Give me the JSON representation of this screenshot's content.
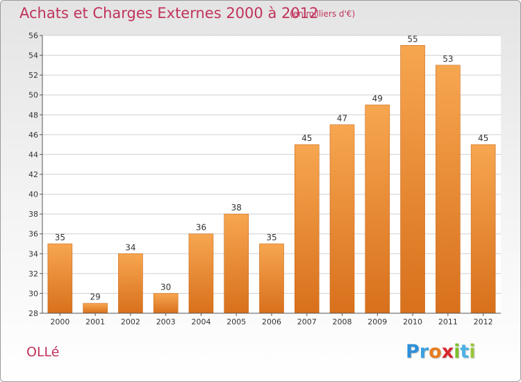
{
  "title": "Achats et Charges Externes 2000 à 2012",
  "subtitle": "(en milliers d'€)",
  "commune": "OLLé",
  "brand": {
    "letters": [
      {
        "ch": "P",
        "color": "#2f8fd8"
      },
      {
        "ch": "r",
        "color": "#3aa0e0"
      },
      {
        "ch": "o",
        "color": "#e87d1e"
      },
      {
        "ch": "x",
        "color": "#d8262e"
      },
      {
        "ch": "i",
        "color": "#7cbf2a"
      },
      {
        "ch": "t",
        "color": "#4bb2e6"
      },
      {
        "ch": "i",
        "color": "#9ac63a"
      }
    ]
  },
  "colors": {
    "bar_light": "#f7a650",
    "bar_dark": "#d8701c",
    "text": "#c0335a"
  },
  "chart_data": {
    "type": "bar",
    "title": "Achats et Charges Externes 2000 à 2012",
    "subtitle": "(en milliers d'€)",
    "categories": [
      "2000",
      "2001",
      "2002",
      "2003",
      "2004",
      "2005",
      "2006",
      "2007",
      "2008",
      "2009",
      "2010",
      "2011",
      "2012"
    ],
    "values": [
      35,
      29,
      34,
      30,
      36,
      38,
      35,
      45,
      47,
      49,
      55,
      53,
      45
    ],
    "ylim": [
      28,
      56
    ],
    "yticks": [
      28,
      30,
      32,
      34,
      36,
      38,
      40,
      42,
      44,
      46,
      48,
      50,
      52,
      54,
      56
    ],
    "grid": true,
    "data_labels": true
  }
}
